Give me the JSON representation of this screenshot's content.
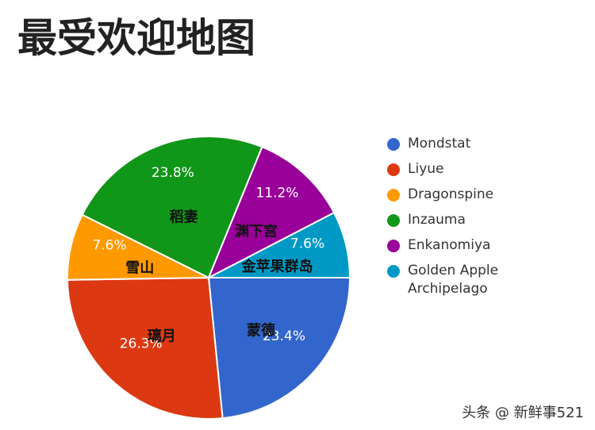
{
  "chart_data": {
    "type": "pie",
    "title": "最受欢迎地图",
    "categories": [
      "Mondstat",
      "Liyue",
      "Dragonspine",
      "Inzauma",
      "Enkanomiya",
      "Golden Apple Archipelago"
    ],
    "slice_labels": [
      "蒙德",
      "璃月",
      "雪山",
      "稻妻",
      "渊下宫",
      "金苹果群岛"
    ],
    "values": [
      23.4,
      26.3,
      7.6,
      23.8,
      11.2,
      7.6
    ],
    "value_labels": [
      "23.4%",
      "26.3%",
      "7.6%",
      "23.8%",
      "11.2%",
      "7.6%"
    ],
    "colors": [
      "#3366cc",
      "#dc3912",
      "#ff9900",
      "#109618",
      "#990099",
      "#0099c6"
    ],
    "legend": "right",
    "watermark": "头条 @ 新鲜事521"
  }
}
